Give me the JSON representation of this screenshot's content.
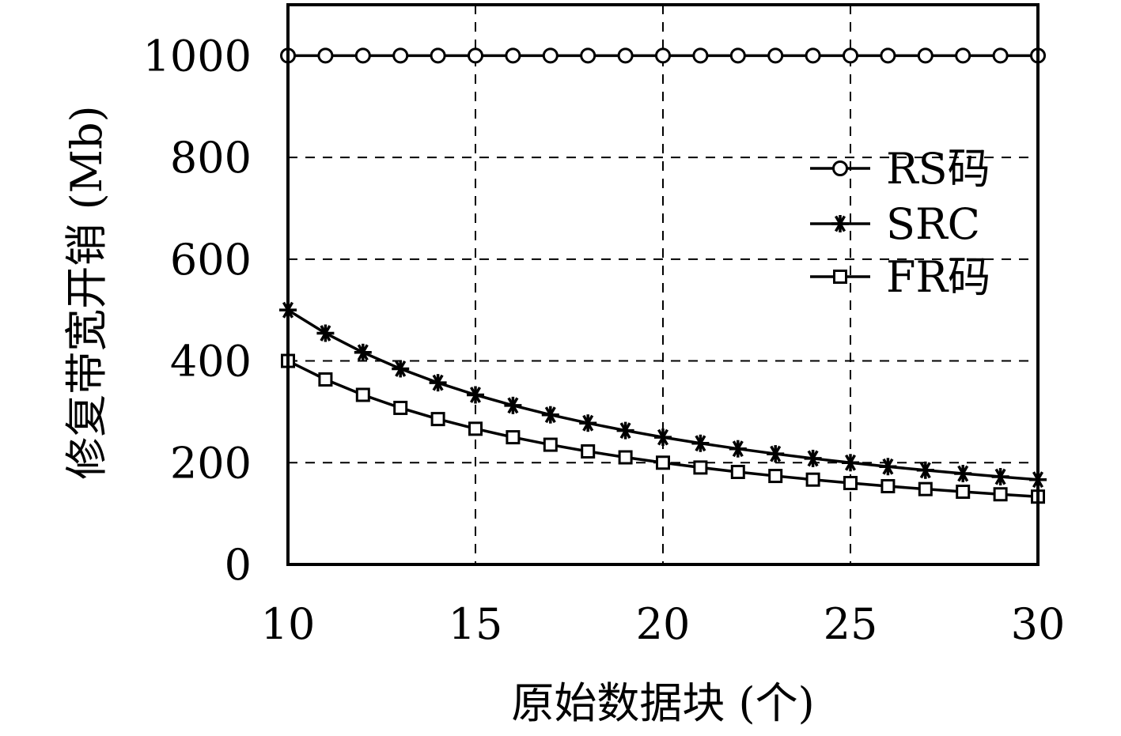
{
  "chart_data": {
    "type": "line",
    "title": "",
    "xlabel": "原始数据块 (个)",
    "ylabel": "修复带宽开销 (Mb)",
    "xlim": [
      10,
      30
    ],
    "ylim": [
      0,
      1100
    ],
    "xticks": [
      10,
      15,
      20,
      25,
      30
    ],
    "yticks": [
      0,
      200,
      400,
      600,
      800,
      1000
    ],
    "grid": true,
    "legend_position": "top-right",
    "x": [
      10,
      11,
      12,
      13,
      14,
      15,
      16,
      17,
      18,
      19,
      20,
      21,
      22,
      23,
      24,
      25,
      26,
      27,
      28,
      29,
      30
    ],
    "series": [
      {
        "name": "RS码",
        "marker": "circle",
        "values": [
          1000,
          1000,
          1000,
          1000,
          1000,
          1000,
          1000,
          1000,
          1000,
          1000,
          1000,
          1000,
          1000,
          1000,
          1000,
          1000,
          1000,
          1000,
          1000,
          1000,
          1000
        ]
      },
      {
        "name": "SRC",
        "marker": "asterisk",
        "values": [
          500,
          454.5,
          416.7,
          384.6,
          357.1,
          333.3,
          312.5,
          294.1,
          277.8,
          263.2,
          250,
          238.1,
          227.3,
          217.4,
          208.3,
          200,
          192.3,
          185.2,
          178.6,
          172.4,
          166.7
        ]
      },
      {
        "name": "FR码",
        "marker": "square",
        "values": [
          400,
          363.6,
          333.3,
          307.7,
          285.7,
          266.7,
          250,
          235.3,
          222.2,
          210.5,
          200,
          190.5,
          181.8,
          173.9,
          166.7,
          160,
          153.8,
          148.1,
          142.9,
          137.9,
          133.3
        ]
      }
    ]
  }
}
